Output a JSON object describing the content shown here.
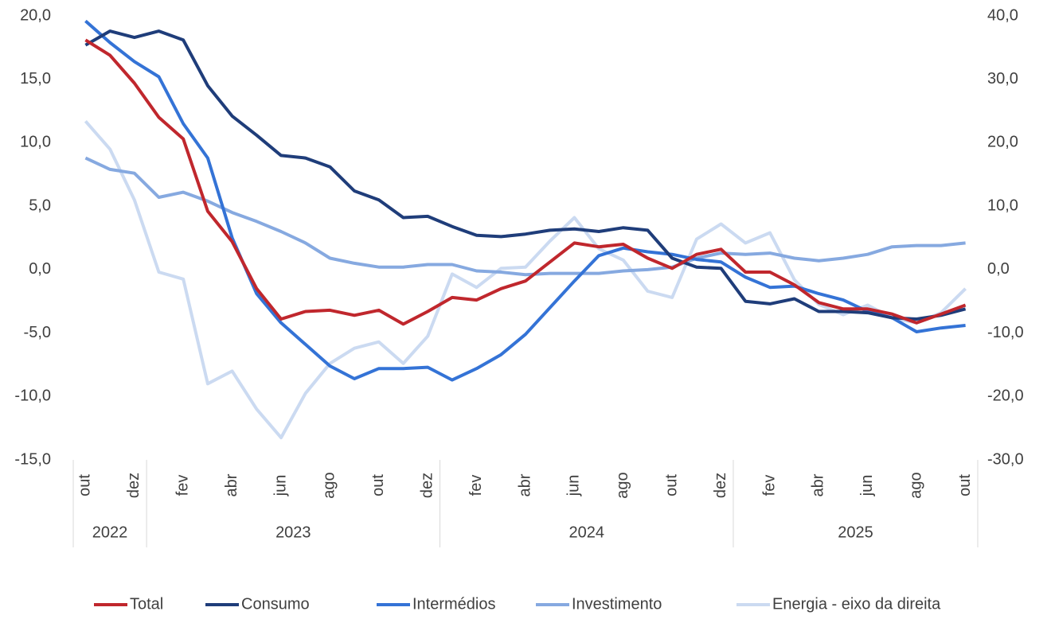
{
  "chart_data": {
    "type": "line",
    "categories": [
      "out",
      null,
      "dez",
      null,
      "fev",
      null,
      "abr",
      null,
      "jun",
      null,
      "ago",
      null,
      "out",
      null,
      "dez",
      null,
      "fev",
      null,
      "abr",
      null,
      "jun",
      null,
      "ago",
      null,
      "out",
      null,
      "dez",
      null,
      "fev",
      null,
      "abr",
      null,
      "jun",
      null,
      "ago",
      null,
      "out"
    ],
    "x_groups": [
      {
        "label": "2022",
        "count": 3
      },
      {
        "label": "2023",
        "count": 12
      },
      {
        "label": "2024",
        "count": 12
      },
      {
        "label": "2025",
        "count": 10
      }
    ],
    "ylim": [
      -15,
      20
    ],
    "yticks": [
      {
        "value": -15,
        "label": "-15,0"
      },
      {
        "value": -10,
        "label": "-10,0"
      },
      {
        "value": -5,
        "label": "-5,0"
      },
      {
        "value": 0,
        "label": "0,0"
      },
      {
        "value": 5,
        "label": "5,0"
      },
      {
        "value": 10,
        "label": "10,0"
      },
      {
        "value": 15,
        "label": "15,0"
      },
      {
        "value": 20,
        "label": "20,0"
      }
    ],
    "y2lim": [
      -30,
      40
    ],
    "y2ticks": [
      {
        "value": -30,
        "label": "-30,0"
      },
      {
        "value": -20,
        "label": "-20,0"
      },
      {
        "value": -10,
        "label": "-10,0"
      },
      {
        "value": 0,
        "label": "0,0"
      },
      {
        "value": 10,
        "label": "10,0"
      },
      {
        "value": 20,
        "label": "20,0"
      },
      {
        "value": 30,
        "label": "30,0"
      },
      {
        "value": 40,
        "label": "40,0"
      }
    ],
    "legend": "bottom",
    "series": [
      {
        "name": "Total",
        "color": "#c0272d",
        "values": [
          18.1,
          16.9,
          14.7,
          12.0,
          10.3,
          4.6,
          2.2,
          -1.5,
          -3.9,
          -3.3,
          -3.2,
          -3.6,
          -3.2,
          -4.3,
          -3.3,
          -2.2,
          -2.4,
          -1.5,
          -0.9,
          0.6,
          2.1,
          1.8,
          2.0,
          0.9,
          0.1,
          1.2,
          1.6,
          -0.2,
          -0.2,
          -1.2,
          -2.6,
          -3.1,
          -3.1,
          -3.5,
          -4.2,
          -3.5,
          -2.8
        ]
      },
      {
        "name": "Consumo",
        "color": "#1f3d7a",
        "values": [
          17.7,
          18.8,
          18.3,
          18.8,
          18.1,
          14.5,
          12.1,
          10.6,
          9.0,
          8.8,
          8.1,
          6.2,
          5.5,
          4.1,
          4.2,
          3.4,
          2.7,
          2.6,
          2.8,
          3.1,
          3.2,
          3.0,
          3.3,
          3.1,
          0.9,
          0.2,
          0.1,
          -2.5,
          -2.7,
          -2.3,
          -3.3,
          -3.3,
          -3.4,
          -3.8,
          -3.9,
          -3.6,
          -3.1
        ]
      },
      {
        "name": "Intermédios",
        "color": "#3473d6",
        "values": [
          19.6,
          17.9,
          16.4,
          15.2,
          11.5,
          8.8,
          2.5,
          -1.9,
          -4.2,
          -5.9,
          -7.6,
          -8.6,
          -7.8,
          -7.8,
          -7.7,
          -8.7,
          -7.8,
          -6.7,
          -5.1,
          -3.0,
          -0.9,
          1.1,
          1.7,
          1.4,
          1.2,
          0.8,
          0.6,
          -0.6,
          -1.4,
          -1.3,
          -1.9,
          -2.4,
          -3.3,
          -3.8,
          -4.9,
          -4.6,
          -4.4
        ]
      },
      {
        "name": "Investimento",
        "color": "#86a9e0",
        "values": [
          8.8,
          7.9,
          7.6,
          5.7,
          6.1,
          5.4,
          4.5,
          3.8,
          3.0,
          2.1,
          0.9,
          0.5,
          0.2,
          0.2,
          0.4,
          0.4,
          -0.1,
          -0.2,
          -0.4,
          -0.3,
          -0.3,
          -0.3,
          -0.1,
          0.0,
          0.2,
          0.9,
          1.3,
          1.2,
          1.3,
          0.9,
          0.7,
          0.9,
          1.2,
          1.8,
          1.9,
          1.9,
          2.1
        ]
      },
      {
        "name": "Energia - eixo da direita",
        "color": "#cbdaf1",
        "axis": "y2",
        "values": [
          23.4,
          19.0,
          11.0,
          -0.4,
          -1.5,
          -18.0,
          -16.0,
          -22.0,
          -26.5,
          -19.5,
          -14.8,
          -12.4,
          -11.4,
          -14.8,
          -10.5,
          -0.7,
          -2.8,
          0.2,
          0.4,
          4.5,
          8.2,
          3.3,
          1.5,
          -3.4,
          -4.4,
          4.8,
          7.2,
          4.2,
          5.8,
          -1.6,
          -5.5,
          -7.1,
          -5.6,
          -7.6,
          -8.4,
          -6.8,
          -3.0
        ]
      }
    ]
  }
}
